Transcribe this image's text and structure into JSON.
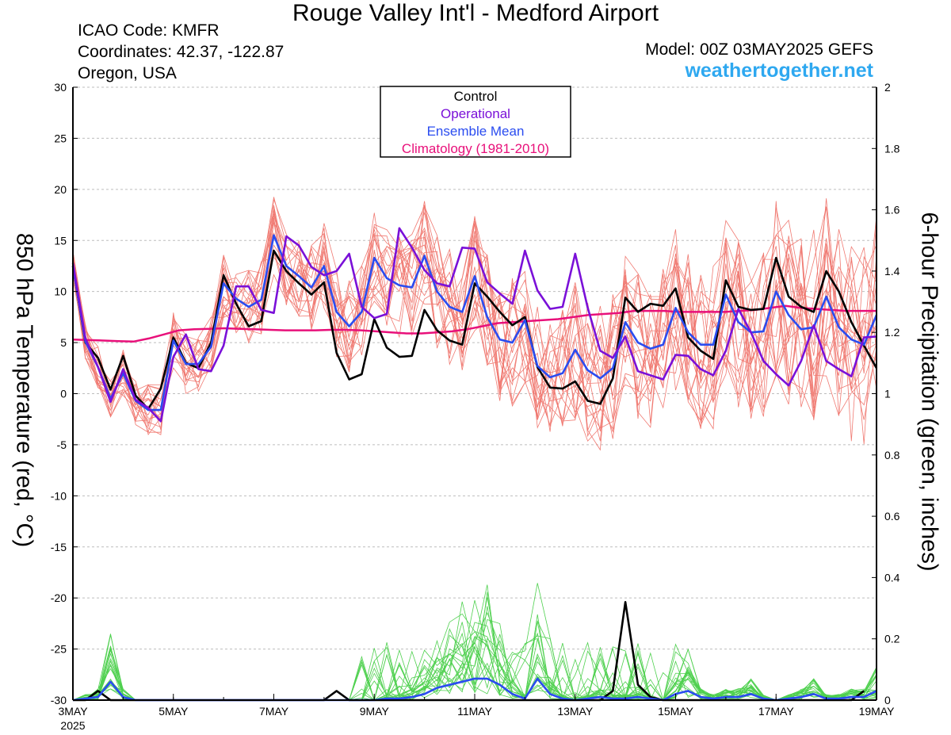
{
  "header": {
    "title": "Rouge Valley Int'l - Medford Airport",
    "icao": "ICAO Code: KMFR",
    "coordinates": "Coordinates: 42.37, -122.87",
    "region": "Oregon, USA",
    "model": "Model: 00Z 03MAY2025 GEFS",
    "site": "weathertogether.net"
  },
  "colors": {
    "control": "#000000",
    "operational": "#7a10d8",
    "ensemble_mean": "#2a4cf0",
    "climatology": "#e8107a",
    "members_temp": "#f07a72",
    "members_precip": "#4ed04e",
    "site": "#2ea8f0"
  },
  "chart_data": {
    "type": "line",
    "xlabel": "",
    "ylabel": "850 hPa Temperature (red, °C)",
    "y2label": "6-hour Precipitation (green, inches)",
    "ylim": [
      -30,
      30
    ],
    "y2lim": [
      0,
      2
    ],
    "grid": "horizontal dashed",
    "legend_position": "top-center",
    "x_ticks": [
      {
        "label": "3MAY",
        "sub": "2025",
        "x": 0
      },
      {
        "label": "5MAY",
        "x": 8
      },
      {
        "label": "7MAY",
        "x": 16
      },
      {
        "label": "9MAY",
        "x": 24
      },
      {
        "label": "11MAY",
        "x": 32
      },
      {
        "label": "13MAY",
        "x": 40
      },
      {
        "label": "15MAY",
        "x": 48
      },
      {
        "label": "17MAY",
        "x": 56
      },
      {
        "label": "19MAY",
        "x": 64
      }
    ],
    "y_ticks": [
      30,
      25,
      20,
      15,
      10,
      5,
      0,
      -5,
      -10,
      -15,
      -20,
      -25,
      -30
    ],
    "y2_ticks": [
      2,
      1.8,
      1.6,
      1.4,
      1.2,
      1,
      0.8,
      0.6,
      0.4,
      0.2,
      0
    ],
    "x_step": "6-hour periods from 00Z 3 May 2025",
    "series": [
      {
        "name": "Control",
        "axis": "temp",
        "values": [
          12.5,
          5,
          3.5,
          0.4,
          3.7,
          -0.2,
          -1.5,
          0.5,
          5.5,
          3,
          2.5,
          5,
          11.6,
          8.8,
          6.6,
          7.1,
          14,
          12,
          10.8,
          9.7,
          10.9,
          4,
          1.4,
          1.9,
          7.3,
          4.5,
          3.6,
          3.7,
          8.2,
          6.2,
          5.2,
          4.8,
          10.8,
          9.5,
          8,
          6.7,
          7.5,
          2.6,
          0.6,
          0.5,
          1.2,
          -0.7,
          -1,
          1.5,
          9.4,
          8,
          8.8,
          8.6,
          10.3,
          5.5,
          4.2,
          3.4,
          11.1,
          8.5,
          8.2,
          8.3,
          13.3,
          9.5,
          8.5,
          8,
          12,
          10,
          7,
          4.7,
          2.5
        ]
      },
      {
        "name": "Operational",
        "axis": "temp",
        "values": [
          12.8,
          5.4,
          2.6,
          -0.8,
          2.4,
          -0.6,
          -1.4,
          -2.7,
          3.6,
          5.8,
          2.4,
          2.2,
          4.7,
          10.5,
          10.5,
          8.2,
          7.9,
          15.4,
          14.5,
          12.4,
          11.6,
          12,
          13.7,
          8.5,
          7.4,
          7.8,
          16.2,
          14.3,
          12.1,
          10.8,
          10.5,
          14.3,
          14.2,
          10.9,
          9.8,
          8.8,
          14,
          10.1,
          8.3,
          8.5,
          13.7,
          8.4,
          4.2,
          3.5,
          5.6,
          2.2,
          1.8,
          1.4,
          3.8,
          3.7,
          2.4,
          1.8,
          4.2,
          8.3,
          6,
          3.2,
          1.9,
          0.8,
          3.2,
          6.7,
          3.2,
          2.4,
          1.7,
          5.5,
          5.6,
          4.2,
          2.9,
          2.2,
          4.2,
          7,
          4.8,
          3.2,
          3.1,
          4.5,
          9.3,
          9.4
        ]
      },
      {
        "name": "Ensemble Mean",
        "axis": "temp",
        "values": [
          12.5,
          5.1,
          2.6,
          -0.5,
          2,
          -0.7,
          -1.6,
          -1.6,
          5.2,
          2.9,
          2.9,
          4.6,
          10.8,
          9.3,
          8.5,
          9.2,
          15.5,
          12.5,
          11.5,
          10.4,
          12.5,
          8,
          6.6,
          8,
          13.3,
          11.3,
          10.6,
          10.4,
          13.5,
          10,
          8.5,
          8,
          11.5,
          7.5,
          5.3,
          5,
          7.2,
          2.7,
          1.6,
          2,
          4.3,
          2.3,
          1.5,
          2.5,
          7,
          5,
          4.4,
          4.8,
          8.4,
          6,
          4.8,
          4.8,
          9.7,
          7,
          6,
          6.1,
          10,
          7.7,
          6.3,
          6.5,
          9.5,
          6.5,
          5.3,
          4.8,
          7.7,
          8
        ]
      },
      {
        "name": "Climatology (1981-2010)",
        "axis": "temp",
        "values": [
          5.3,
          5.25,
          5.2,
          5.15,
          5.1,
          5.4,
          5.8,
          6.2,
          6.3,
          6.35,
          6.4,
          6.35,
          6.3,
          6.25,
          6.2,
          6.2,
          6.2,
          6.25,
          6.25,
          6.2,
          6.1,
          6,
          5.9,
          5.9,
          6,
          6.1,
          6.3,
          6.6,
          6.9,
          7,
          7.1,
          7.2,
          7.3,
          7.5,
          7.7,
          7.8,
          7.9,
          8.1,
          8.1,
          8.1,
          8,
          8,
          8,
          8,
          8.1,
          8.2,
          8.4,
          8.6,
          8.4,
          8.3,
          8.2,
          8.1,
          8.1,
          8.1
        ]
      },
      {
        "name": "Control Precipitation",
        "axis": "precip",
        "values": [
          0,
          0,
          0.03,
          0,
          0,
          0,
          0,
          0,
          0,
          0,
          0,
          0,
          0,
          0,
          0,
          0,
          0,
          0,
          0,
          0,
          0,
          0.03,
          0,
          0,
          0,
          0,
          0,
          0,
          0,
          0,
          0,
          0,
          0,
          0,
          0,
          0,
          0,
          0,
          0,
          0,
          0,
          0,
          0,
          0.03,
          0.32,
          0.05,
          0.01,
          0,
          0,
          0,
          0,
          0,
          0,
          0,
          0,
          0,
          0,
          0,
          0,
          0,
          0,
          0,
          0,
          0.03
        ]
      },
      {
        "name": "Ensemble Mean Precipitation",
        "axis": "precip",
        "values": [
          0,
          0.005,
          0.01,
          0.06,
          0.01,
          0,
          0,
          0,
          0,
          0,
          0,
          0,
          0,
          0,
          0,
          0,
          0,
          0,
          0,
          0,
          0,
          0,
          0,
          0,
          0,
          0.005,
          0.005,
          0.01,
          0.02,
          0.04,
          0.05,
          0.06,
          0.07,
          0.07,
          0.05,
          0.02,
          0.005,
          0.07,
          0.02,
          0.005,
          0,
          0.005,
          0.01,
          0.005,
          0.005,
          0.01,
          0.005,
          0,
          0.02,
          0.03,
          0.01,
          0.005,
          0.01,
          0.01,
          0.02,
          0.005,
          0,
          0.005,
          0.01,
          0.02,
          0.005,
          0.005,
          0.01,
          0.01,
          0.03
        ]
      }
    ]
  }
}
